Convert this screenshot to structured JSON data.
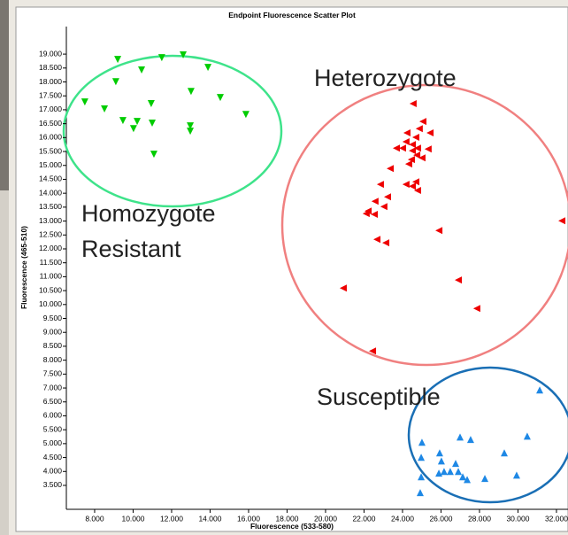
{
  "chart_data": {
    "type": "scatter",
    "title": "Endpoint Fluorescence Scatter Plot",
    "xlabel": "Fluorescence (533-580)",
    "ylabel": "Fluorescence (465-510)",
    "annotations": [
      "Heterozygote",
      "Homozygote",
      "Resistant",
      "Susceptible"
    ],
    "xlim": [
      6.53,
      32.6
    ],
    "ylim": [
      2.64,
      19.99
    ],
    "xticks": [
      {
        "value": 8,
        "label": "8.000"
      },
      {
        "value": 10,
        "label": "10.000"
      },
      {
        "value": 12,
        "label": "12.000"
      },
      {
        "value": 14,
        "label": "14.000"
      },
      {
        "value": 16,
        "label": "16.000"
      },
      {
        "value": 18,
        "label": "18.000"
      },
      {
        "value": 20,
        "label": "20.000"
      },
      {
        "value": 22,
        "label": "22.000"
      },
      {
        "value": 24,
        "label": "24.000"
      },
      {
        "value": 26,
        "label": "26.000"
      },
      {
        "value": 28,
        "label": "28.000"
      },
      {
        "value": 30,
        "label": "30.000"
      },
      {
        "value": 32,
        "label": "32.000"
      }
    ],
    "yticks": [
      {
        "value": 3.5,
        "label": "3.500"
      },
      {
        "value": 4,
        "label": "4.000"
      },
      {
        "value": 4.5,
        "label": "4.500"
      },
      {
        "value": 5,
        "label": "5.000"
      },
      {
        "value": 5.5,
        "label": "5.500"
      },
      {
        "value": 6,
        "label": "6.000"
      },
      {
        "value": 6.5,
        "label": "6.500"
      },
      {
        "value": 7,
        "label": "7.000"
      },
      {
        "value": 7.5,
        "label": "7.500"
      },
      {
        "value": 8,
        "label": "8.000"
      },
      {
        "value": 8.5,
        "label": "8.500"
      },
      {
        "value": 9,
        "label": "9.000"
      },
      {
        "value": 9.5,
        "label": "9.500"
      },
      {
        "value": 10,
        "label": "10.000"
      },
      {
        "value": 10.5,
        "label": "10.500"
      },
      {
        "value": 11,
        "label": "11.000"
      },
      {
        "value": 11.5,
        "label": "11.500"
      },
      {
        "value": 12,
        "label": "12.000"
      },
      {
        "value": 12.5,
        "label": "12.500"
      },
      {
        "value": 13,
        "label": "13.000"
      },
      {
        "value": 13.5,
        "label": "13.500"
      },
      {
        "value": 14,
        "label": "14.000"
      },
      {
        "value": 14.5,
        "label": "14.500"
      },
      {
        "value": 15,
        "label": "15.000"
      },
      {
        "value": 15.5,
        "label": "15.500"
      },
      {
        "value": 16,
        "label": "16.000"
      },
      {
        "value": 16.5,
        "label": "16.500"
      },
      {
        "value": 17,
        "label": "17.000"
      },
      {
        "value": 17.5,
        "label": "17.500"
      },
      {
        "value": 18,
        "label": "18.000"
      },
      {
        "value": 18.5,
        "label": "18.500"
      },
      {
        "value": 19,
        "label": "19.000"
      }
    ],
    "series": [
      {
        "color": "#00cc00",
        "marker": "down",
        "x": [
          7.49,
          9.2,
          8.51,
          9.1,
          10.44,
          11.49,
          12.6,
          13.89,
          13.01,
          10.94,
          9.47,
          10.02,
          10.21,
          10.99,
          12.97,
          12.97,
          14.53,
          15.86,
          11.08
        ],
        "values": [
          17.28,
          18.81,
          17.03,
          18.01,
          18.43,
          18.87,
          18.97,
          18.52,
          17.66,
          17.22,
          16.61,
          16.32,
          16.58,
          16.52,
          16.42,
          16.23,
          17.44,
          16.83,
          15.4
        ]
      },
      {
        "color": "#ee0000",
        "marker": "left",
        "x": [
          24.55,
          25.06,
          24.87,
          24.23,
          24.69,
          25.43,
          24.18,
          24.51,
          24.0,
          24.78,
          23.68,
          25.33,
          24.51,
          24.74,
          25.01,
          24.46,
          24.32,
          23.36,
          24.69,
          24.51,
          24.18,
          24.78,
          22.85,
          23.22,
          22.57,
          23.03,
          22.21,
          22.53,
          22.11,
          25.89,
          22.67,
          23.13,
          32.28,
          20.92,
          26.9,
          27.86,
          22.44
        ],
        "values": [
          17.22,
          16.58,
          16.32,
          16.17,
          16.01,
          16.17,
          15.85,
          15.75,
          15.62,
          15.62,
          15.62,
          15.59,
          15.53,
          15.37,
          15.27,
          15.21,
          15.05,
          14.89,
          14.41,
          14.25,
          14.32,
          14.1,
          14.32,
          13.87,
          13.71,
          13.52,
          13.36,
          13.24,
          13.27,
          12.66,
          12.34,
          12.22,
          13.01,
          10.59,
          10.88,
          9.86,
          8.33
        ]
      },
      {
        "color": "#1e88e5",
        "marker": "up",
        "x": [
          25.01,
          25.93,
          26.99,
          27.54,
          31.13,
          30.48,
          29.29,
          24.97,
          26.02,
          24.97,
          25.89,
          26.16,
          26.48,
          26.76,
          26.9,
          27.13,
          27.36,
          28.28,
          29.93,
          24.92
        ],
        "values": [
          5.05,
          4.67,
          5.24,
          5.15,
          6.93,
          5.27,
          4.67,
          4.51,
          4.38,
          3.81,
          3.94,
          4.0,
          4.0,
          4.29,
          4.0,
          3.81,
          3.71,
          3.75,
          3.87,
          3.24
        ]
      }
    ]
  }
}
